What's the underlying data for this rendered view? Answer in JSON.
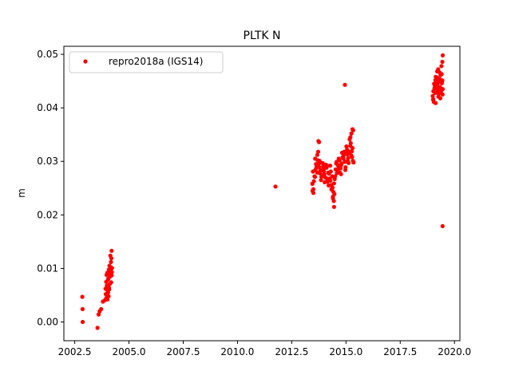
{
  "chart_data": {
    "type": "scatter",
    "title": "PLTK N",
    "xlabel": "",
    "ylabel": "m",
    "xlim": [
      2002.0,
      2020.25
    ],
    "ylim": [
      -0.0035,
      0.0515
    ],
    "xticks": [
      2002.5,
      2005.0,
      2007.5,
      2010.0,
      2012.5,
      2015.0,
      2017.5,
      2020.0
    ],
    "xtick_labels": [
      "2002.5",
      "2005.0",
      "2007.5",
      "2010.0",
      "2012.5",
      "2015.0",
      "2017.5",
      "2020.0"
    ],
    "yticks": [
      0.0,
      0.01,
      0.02,
      0.03,
      0.04,
      0.05
    ],
    "ytick_labels": [
      "0.00",
      "0.01",
      "0.02",
      "0.03",
      "0.04",
      "0.05"
    ],
    "grid": false,
    "legend_position": "upper left",
    "series": [
      {
        "name": "repro2018a (IGS14)",
        "color": "#ff0000",
        "marker": "circle",
        "x": [
          2002.85,
          2002.86,
          2002.87,
          2003.55,
          2003.6,
          2003.65,
          2003.72,
          2003.8,
          2003.9,
          2003.92,
          2003.95,
          2003.97,
          2004.0,
          2004.02,
          2004.05,
          2004.07,
          2004.1,
          2004.12,
          2004.15,
          2004.17,
          2004.2,
          2004.22,
          2003.93,
          2003.98,
          2004.03,
          2004.08,
          2004.13,
          2004.18,
          2004.21,
          2003.96,
          2004.04,
          2004.11,
          2004.16,
          2004.19,
          2004.06,
          2004.14,
          2004.09,
          2004.01,
          2004.2,
          2004.17,
          2011.75,
          2013.45,
          2013.5,
          2013.55,
          2013.6,
          2013.65,
          2013.7,
          2013.75,
          2013.8,
          2013.85,
          2013.9,
          2013.95,
          2014.0,
          2014.05,
          2014.1,
          2014.15,
          2014.2,
          2014.25,
          2014.3,
          2014.35,
          2014.4,
          2014.45,
          2014.5,
          2014.55,
          2014.6,
          2014.65,
          2014.7,
          2014.75,
          2014.8,
          2014.85,
          2014.9,
          2014.95,
          2015.0,
          2015.05,
          2015.1,
          2015.15,
          2015.2,
          2015.25,
          2015.3,
          2015.35,
          2013.48,
          2013.58,
          2013.68,
          2013.78,
          2013.88,
          2013.98,
          2014.08,
          2014.18,
          2014.28,
          2014.38,
          2014.48,
          2014.58,
          2014.68,
          2014.78,
          2014.88,
          2014.98,
          2015.08,
          2015.18,
          2015.28,
          2013.52,
          2013.62,
          2013.72,
          2013.82,
          2013.92,
          2014.02,
          2014.12,
          2014.22,
          2014.32,
          2014.42,
          2014.52,
          2014.62,
          2014.72,
          2014.82,
          2014.92,
          2015.02,
          2015.12,
          2015.22,
          2015.32,
          2013.57,
          2013.67,
          2013.77,
          2013.87,
          2013.97,
          2014.07,
          2014.17,
          2014.27,
          2014.37,
          2014.47,
          2014.57,
          2014.67,
          2014.77,
          2014.87,
          2014.97,
          2015.07,
          2015.17,
          2015.27,
          2013.73,
          2013.76,
          2014.33,
          2014.44,
          2015.25,
          2015.3,
          2015.2,
          2013.46,
          2013.5,
          2014.45,
          2014.95,
          2014.4,
          2015.33,
          2019.0,
          2019.03,
          2019.06,
          2019.09,
          2019.12,
          2019.15,
          2019.18,
          2019.21,
          2019.24,
          2019.27,
          2019.3,
          2019.33,
          2019.36,
          2019.39,
          2019.42,
          2019.45,
          2019.02,
          2019.08,
          2019.14,
          2019.2,
          2019.26,
          2019.32,
          2019.38,
          2019.44,
          2019.05,
          2019.11,
          2019.17,
          2019.23,
          2019.29,
          2019.35,
          2019.41,
          2019.46,
          2019.13,
          2019.25,
          2019.4,
          2019.44,
          2019.1,
          2019.28,
          2019.34,
          2019.42,
          2019.46,
          2019.02,
          2019.2,
          2019.38
        ],
        "y": [
          0.0047,
          0.0024,
          0.0,
          -0.0011,
          0.0014,
          0.002,
          0.0024,
          0.0038,
          0.0041,
          0.0062,
          0.0075,
          0.0088,
          0.0092,
          0.0058,
          0.0081,
          0.0098,
          0.0105,
          0.0071,
          0.0095,
          0.0112,
          0.0087,
          0.0101,
          0.0052,
          0.0068,
          0.0079,
          0.0064,
          0.0085,
          0.0074,
          0.0093,
          0.0045,
          0.0055,
          0.0089,
          0.0102,
          0.0119,
          0.0048,
          0.0124,
          0.0061,
          0.0042,
          0.0133,
          0.0096,
          0.0253,
          0.0258,
          0.0248,
          0.0272,
          0.0285,
          0.029,
          0.0302,
          0.0295,
          0.0278,
          0.0265,
          0.0283,
          0.0291,
          0.0276,
          0.027,
          0.0288,
          0.0262,
          0.0255,
          0.0268,
          0.0281,
          0.0247,
          0.0234,
          0.0259,
          0.0272,
          0.0296,
          0.0284,
          0.0291,
          0.0302,
          0.0287,
          0.0296,
          0.0308,
          0.0312,
          0.0299,
          0.0315,
          0.0322,
          0.0306,
          0.0318,
          0.0329,
          0.0311,
          0.0325,
          0.0298,
          0.0281,
          0.0305,
          0.0312,
          0.0301,
          0.0274,
          0.0282,
          0.0269,
          0.0279,
          0.0264,
          0.0251,
          0.0267,
          0.0278,
          0.0289,
          0.0293,
          0.0305,
          0.0289,
          0.0301,
          0.0317,
          0.0308,
          0.0263,
          0.0295,
          0.0318,
          0.0284,
          0.0297,
          0.0261,
          0.0292,
          0.0277,
          0.0256,
          0.0243,
          0.0285,
          0.0294,
          0.0279,
          0.0316,
          0.0318,
          0.0328,
          0.0297,
          0.0334,
          0.0301,
          0.0271,
          0.0279,
          0.0289,
          0.0271,
          0.0286,
          0.0294,
          0.0265,
          0.0292,
          0.0272,
          0.0239,
          0.0299,
          0.0305,
          0.0276,
          0.0308,
          0.0284,
          0.0313,
          0.0341,
          0.0319,
          0.0338,
          0.0336,
          0.0248,
          0.0226,
          0.0352,
          0.036,
          0.0345,
          0.0245,
          0.0241,
          0.0215,
          0.0443,
          0.0231,
          0.0358,
          0.0422,
          0.0431,
          0.0445,
          0.0438,
          0.0452,
          0.0429,
          0.0441,
          0.0456,
          0.0433,
          0.0448,
          0.0427,
          0.0439,
          0.0461,
          0.0436,
          0.0447,
          0.0425,
          0.0415,
          0.0436,
          0.0458,
          0.0443,
          0.0421,
          0.0466,
          0.0432,
          0.0451,
          0.0411,
          0.0428,
          0.0449,
          0.0437,
          0.0454,
          0.0418,
          0.0463,
          0.0435,
          0.0409,
          0.0472,
          0.0478,
          0.0486,
          0.0442,
          0.0426,
          0.0453,
          0.0446,
          0.0498,
          0.0416,
          0.0468,
          0.0431
        ],
        "outliers_note": ""
      },
      {
        "name": "",
        "color": "#ff0000",
        "x": [
          2019.45
        ],
        "y": [
          0.0179
        ]
      }
    ]
  }
}
